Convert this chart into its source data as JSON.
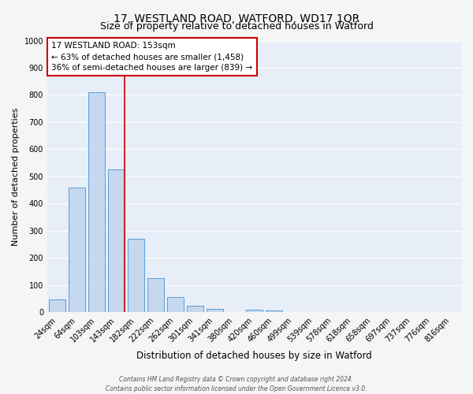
{
  "title_line1": "17, WESTLAND ROAD, WATFORD, WD17 1QR",
  "title_line2": "Size of property relative to detached houses in Watford",
  "xlabel": "Distribution of detached houses by size in Watford",
  "ylabel": "Number of detached properties",
  "bar_labels": [
    "24sqm",
    "64sqm",
    "103sqm",
    "143sqm",
    "182sqm",
    "222sqm",
    "262sqm",
    "301sqm",
    "341sqm",
    "380sqm",
    "420sqm",
    "460sqm",
    "499sqm",
    "539sqm",
    "578sqm",
    "618sqm",
    "658sqm",
    "697sqm",
    "737sqm",
    "776sqm",
    "816sqm"
  ],
  "bar_values": [
    47,
    460,
    810,
    525,
    272,
    125,
    55,
    25,
    12,
    0,
    10,
    8,
    0,
    0,
    0,
    0,
    0,
    0,
    0,
    0,
    0
  ],
  "bar_color": "#c5d8f0",
  "bar_edge_color": "#5b9bd5",
  "vline_color": "#cc0000",
  "ylim": [
    0,
    1000
  ],
  "yticks": [
    0,
    100,
    200,
    300,
    400,
    500,
    600,
    700,
    800,
    900,
    1000
  ],
  "annotation_title": "17 WESTLAND ROAD: 153sqm",
  "annotation_line1": "← 63% of detached houses are smaller (1,458)",
  "annotation_line2": "36% of semi-detached houses are larger (839) →",
  "annotation_box_facecolor": "#ffffff",
  "annotation_box_edgecolor": "#cc0000",
  "footer_line1": "Contains HM Land Registry data © Crown copyright and database right 2024.",
  "footer_line2": "Contains public sector information licensed under the Open Government Licence v3.0.",
  "plot_bg_color": "#e8eef8",
  "fig_bg_color": "#f5f5f5",
  "grid_color": "#ffffff",
  "title1_fontsize": 10,
  "title2_fontsize": 9,
  "ylabel_fontsize": 8,
  "xlabel_fontsize": 8.5,
  "tick_fontsize": 7,
  "annotation_fontsize": 7.5,
  "footer_fontsize": 5.5
}
